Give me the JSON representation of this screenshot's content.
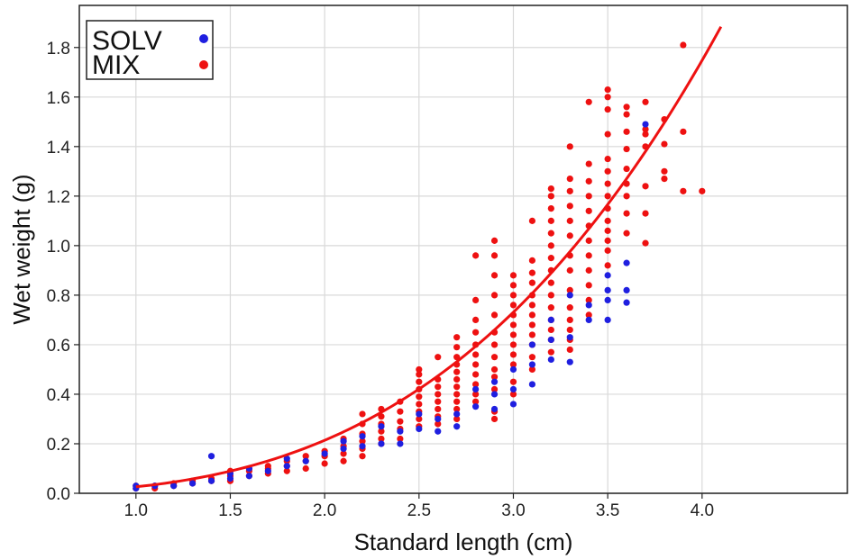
{
  "chart_data": {
    "type": "scatter",
    "title": "",
    "xlabel": "Standard length (cm)",
    "ylabel": "Wet weight (g)",
    "xlim": [
      0.7,
      4.77
    ],
    "ylim": [
      0.0,
      1.97
    ],
    "xticks": [
      1.0,
      1.5,
      2.0,
      2.5,
      3.0,
      3.5,
      4.0
    ],
    "yticks": [
      0.0,
      0.2,
      0.4,
      0.6,
      0.8,
      1.0,
      1.2,
      1.4,
      1.6,
      1.8
    ],
    "grid": true,
    "legend_position": "top-left",
    "colors": {
      "SOLV": "#1f1fe0",
      "MIX": "#ee1111",
      "curve": "#ee1111"
    },
    "series": [
      {
        "name": "SOLV",
        "points": [
          [
            1.0,
            0.02
          ],
          [
            1.0,
            0.03
          ],
          [
            1.1,
            0.03
          ],
          [
            1.2,
            0.03
          ],
          [
            1.3,
            0.04
          ],
          [
            1.4,
            0.05
          ],
          [
            1.4,
            0.15
          ],
          [
            1.5,
            0.06
          ],
          [
            1.5,
            0.08
          ],
          [
            1.6,
            0.07
          ],
          [
            1.6,
            0.1
          ],
          [
            1.7,
            0.09
          ],
          [
            1.8,
            0.11
          ],
          [
            1.8,
            0.14
          ],
          [
            1.9,
            0.13
          ],
          [
            2.0,
            0.16
          ],
          [
            2.1,
            0.18
          ],
          [
            2.1,
            0.21
          ],
          [
            2.2,
            0.19
          ],
          [
            2.2,
            0.23
          ],
          [
            2.3,
            0.2
          ],
          [
            2.3,
            0.27
          ],
          [
            2.4,
            0.2
          ],
          [
            2.4,
            0.25
          ],
          [
            2.5,
            0.26
          ],
          [
            2.5,
            0.32
          ],
          [
            2.6,
            0.25
          ],
          [
            2.6,
            0.3
          ],
          [
            2.7,
            0.27
          ],
          [
            2.7,
            0.32
          ],
          [
            2.8,
            0.35
          ],
          [
            2.8,
            0.42
          ],
          [
            2.9,
            0.34
          ],
          [
            2.9,
            0.4
          ],
          [
            2.9,
            0.45
          ],
          [
            3.0,
            0.36
          ],
          [
            3.0,
            0.42
          ],
          [
            3.0,
            0.5
          ],
          [
            3.1,
            0.44
          ],
          [
            3.1,
            0.52
          ],
          [
            3.1,
            0.6
          ],
          [
            3.2,
            0.54
          ],
          [
            3.2,
            0.62
          ],
          [
            3.2,
            0.7
          ],
          [
            3.3,
            0.53
          ],
          [
            3.3,
            0.63
          ],
          [
            3.3,
            0.8
          ],
          [
            3.4,
            0.7
          ],
          [
            3.4,
            0.76
          ],
          [
            3.5,
            0.7
          ],
          [
            3.5,
            0.78
          ],
          [
            3.5,
            0.82
          ],
          [
            3.5,
            0.88
          ],
          [
            3.6,
            0.77
          ],
          [
            3.6,
            0.82
          ],
          [
            3.6,
            0.93
          ],
          [
            3.7,
            1.49
          ]
        ]
      },
      {
        "name": "MIX",
        "points": [
          [
            1.0,
            0.02
          ],
          [
            1.0,
            0.03
          ],
          [
            1.1,
            0.02
          ],
          [
            1.1,
            0.03
          ],
          [
            1.2,
            0.03
          ],
          [
            1.2,
            0.04
          ],
          [
            1.3,
            0.04
          ],
          [
            1.3,
            0.05
          ],
          [
            1.4,
            0.05
          ],
          [
            1.4,
            0.06
          ],
          [
            1.5,
            0.05
          ],
          [
            1.5,
            0.07
          ],
          [
            1.5,
            0.09
          ],
          [
            1.6,
            0.07
          ],
          [
            1.6,
            0.09
          ],
          [
            1.6,
            0.1
          ],
          [
            1.7,
            0.08
          ],
          [
            1.7,
            0.1
          ],
          [
            1.7,
            0.11
          ],
          [
            1.8,
            0.09
          ],
          [
            1.8,
            0.11
          ],
          [
            1.8,
            0.13
          ],
          [
            1.9,
            0.1
          ],
          [
            1.9,
            0.13
          ],
          [
            1.9,
            0.15
          ],
          [
            2.0,
            0.12
          ],
          [
            2.0,
            0.15
          ],
          [
            2.0,
            0.17
          ],
          [
            2.1,
            0.13
          ],
          [
            2.1,
            0.16
          ],
          [
            2.1,
            0.19
          ],
          [
            2.1,
            0.22
          ],
          [
            2.2,
            0.15
          ],
          [
            2.2,
            0.18
          ],
          [
            2.2,
            0.21
          ],
          [
            2.2,
            0.24
          ],
          [
            2.2,
            0.28
          ],
          [
            2.2,
            0.32
          ],
          [
            2.3,
            0.2
          ],
          [
            2.3,
            0.22
          ],
          [
            2.3,
            0.25
          ],
          [
            2.3,
            0.28
          ],
          [
            2.3,
            0.31
          ],
          [
            2.3,
            0.34
          ],
          [
            2.4,
            0.22
          ],
          [
            2.4,
            0.26
          ],
          [
            2.4,
            0.29
          ],
          [
            2.4,
            0.33
          ],
          [
            2.4,
            0.37
          ],
          [
            2.5,
            0.27
          ],
          [
            2.5,
            0.3
          ],
          [
            2.5,
            0.33
          ],
          [
            2.5,
            0.36
          ],
          [
            2.5,
            0.39
          ],
          [
            2.5,
            0.42
          ],
          [
            2.5,
            0.45
          ],
          [
            2.5,
            0.48
          ],
          [
            2.5,
            0.5
          ],
          [
            2.6,
            0.28
          ],
          [
            2.6,
            0.31
          ],
          [
            2.6,
            0.34
          ],
          [
            2.6,
            0.37
          ],
          [
            2.6,
            0.4
          ],
          [
            2.6,
            0.43
          ],
          [
            2.6,
            0.46
          ],
          [
            2.6,
            0.55
          ],
          [
            2.7,
            0.3
          ],
          [
            2.7,
            0.34
          ],
          [
            2.7,
            0.37
          ],
          [
            2.7,
            0.4
          ],
          [
            2.7,
            0.43
          ],
          [
            2.7,
            0.46
          ],
          [
            2.7,
            0.49
          ],
          [
            2.7,
            0.52
          ],
          [
            2.7,
            0.55
          ],
          [
            2.7,
            0.59
          ],
          [
            2.7,
            0.63
          ],
          [
            2.8,
            0.37
          ],
          [
            2.8,
            0.4
          ],
          [
            2.8,
            0.44
          ],
          [
            2.8,
            0.48
          ],
          [
            2.8,
            0.52
          ],
          [
            2.8,
            0.56
          ],
          [
            2.8,
            0.6
          ],
          [
            2.8,
            0.65
          ],
          [
            2.8,
            0.7
          ],
          [
            2.8,
            0.78
          ],
          [
            2.8,
            0.96
          ],
          [
            2.9,
            0.3
          ],
          [
            2.9,
            0.33
          ],
          [
            2.9,
            0.42
          ],
          [
            2.9,
            0.47
          ],
          [
            2.9,
            0.5
          ],
          [
            2.9,
            0.55
          ],
          [
            2.9,
            0.6
          ],
          [
            2.9,
            0.65
          ],
          [
            2.9,
            0.72
          ],
          [
            2.9,
            0.8
          ],
          [
            2.9,
            0.88
          ],
          [
            2.9,
            0.96
          ],
          [
            2.9,
            1.02
          ],
          [
            3.0,
            0.4
          ],
          [
            3.0,
            0.45
          ],
          [
            3.0,
            0.52
          ],
          [
            3.0,
            0.56
          ],
          [
            3.0,
            0.6
          ],
          [
            3.0,
            0.64
          ],
          [
            3.0,
            0.68
          ],
          [
            3.0,
            0.72
          ],
          [
            3.0,
            0.76
          ],
          [
            3.0,
            0.8
          ],
          [
            3.0,
            0.84
          ],
          [
            3.0,
            0.88
          ],
          [
            3.1,
            0.5
          ],
          [
            3.1,
            0.55
          ],
          [
            3.1,
            0.6
          ],
          [
            3.1,
            0.64
          ],
          [
            3.1,
            0.68
          ],
          [
            3.1,
            0.72
          ],
          [
            3.1,
            0.76
          ],
          [
            3.1,
            0.8
          ],
          [
            3.1,
            0.85
          ],
          [
            3.1,
            0.89
          ],
          [
            3.1,
            0.94
          ],
          [
            3.1,
            1.1
          ],
          [
            3.2,
            0.57
          ],
          [
            3.2,
            0.62
          ],
          [
            3.2,
            0.66
          ],
          [
            3.2,
            0.7
          ],
          [
            3.2,
            0.75
          ],
          [
            3.2,
            0.8
          ],
          [
            3.2,
            0.85
          ],
          [
            3.2,
            0.9
          ],
          [
            3.2,
            0.95
          ],
          [
            3.2,
            1.0
          ],
          [
            3.2,
            1.05
          ],
          [
            3.2,
            1.1
          ],
          [
            3.2,
            1.15
          ],
          [
            3.2,
            1.2
          ],
          [
            3.2,
            1.23
          ],
          [
            3.3,
            0.58
          ],
          [
            3.3,
            0.62
          ],
          [
            3.3,
            0.66
          ],
          [
            3.3,
            0.7
          ],
          [
            3.3,
            0.75
          ],
          [
            3.3,
            0.82
          ],
          [
            3.3,
            0.9
          ],
          [
            3.3,
            0.96
          ],
          [
            3.3,
            1.04
          ],
          [
            3.3,
            1.1
          ],
          [
            3.3,
            1.16
          ],
          [
            3.3,
            1.22
          ],
          [
            3.3,
            1.27
          ],
          [
            3.3,
            1.4
          ],
          [
            3.4,
            0.72
          ],
          [
            3.4,
            0.78
          ],
          [
            3.4,
            0.84
          ],
          [
            3.4,
            0.9
          ],
          [
            3.4,
            0.96
          ],
          [
            3.4,
            1.02
          ],
          [
            3.4,
            1.08
          ],
          [
            3.4,
            1.14
          ],
          [
            3.4,
            1.2
          ],
          [
            3.4,
            1.26
          ],
          [
            3.4,
            1.33
          ],
          [
            3.4,
            1.58
          ],
          [
            3.5,
            0.92
          ],
          [
            3.5,
            0.98
          ],
          [
            3.5,
            1.02
          ],
          [
            3.5,
            1.06
          ],
          [
            3.5,
            1.1
          ],
          [
            3.5,
            1.15
          ],
          [
            3.5,
            1.2
          ],
          [
            3.5,
            1.25
          ],
          [
            3.5,
            1.3
          ],
          [
            3.5,
            1.35
          ],
          [
            3.5,
            1.45
          ],
          [
            3.5,
            1.55
          ],
          [
            3.5,
            1.6
          ],
          [
            3.5,
            1.63
          ],
          [
            3.6,
            1.05
          ],
          [
            3.6,
            1.13
          ],
          [
            3.6,
            1.2
          ],
          [
            3.6,
            1.25
          ],
          [
            3.6,
            1.31
          ],
          [
            3.6,
            1.39
          ],
          [
            3.6,
            1.46
          ],
          [
            3.6,
            1.53
          ],
          [
            3.6,
            1.56
          ],
          [
            3.7,
            1.01
          ],
          [
            3.7,
            1.13
          ],
          [
            3.7,
            1.24
          ],
          [
            3.7,
            1.4
          ],
          [
            3.7,
            1.45
          ],
          [
            3.7,
            1.47
          ],
          [
            3.7,
            1.58
          ],
          [
            3.8,
            1.27
          ],
          [
            3.8,
            1.3
          ],
          [
            3.8,
            1.41
          ],
          [
            3.8,
            1.51
          ],
          [
            3.9,
            1.22
          ],
          [
            3.9,
            1.46
          ],
          [
            3.9,
            1.81
          ],
          [
            4.0,
            1.22
          ]
        ]
      }
    ],
    "curve": {
      "type": "power-fit",
      "a": 0.0262,
      "b": 3.03,
      "x_range": [
        1.0,
        4.1
      ]
    }
  }
}
